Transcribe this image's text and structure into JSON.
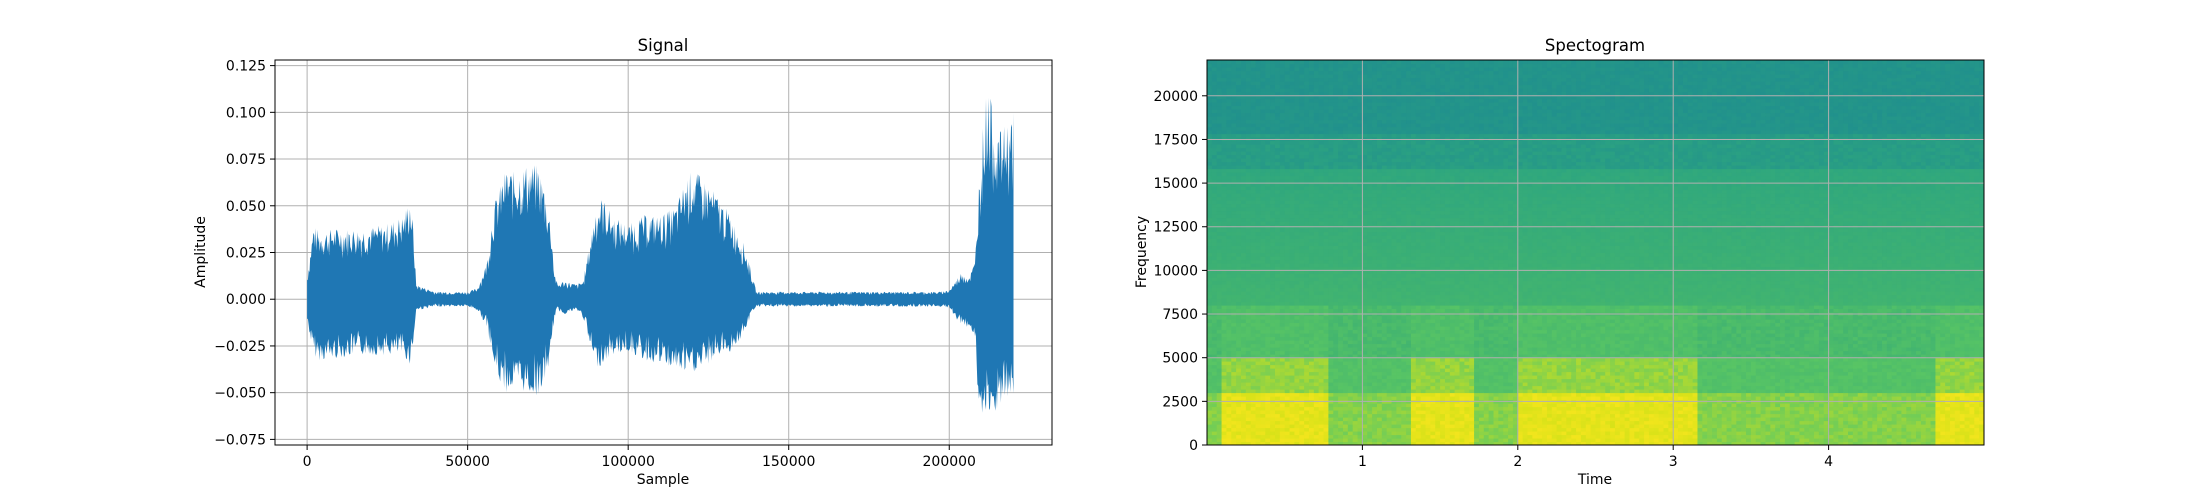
{
  "chart_data": [
    {
      "type": "line",
      "title": "Signal",
      "xlabel": "Sample",
      "ylabel": "Amplitude",
      "xlim": [
        -10000,
        232000
      ],
      "ylim": [
        -0.078,
        0.128
      ],
      "grid": true,
      "color": "#1f77b4",
      "xticks": [
        0,
        50000,
        100000,
        150000,
        200000
      ],
      "xtick_labels": [
        "0",
        "50000",
        "100000",
        "150000",
        "200000"
      ],
      "yticks": [
        -0.075,
        -0.05,
        -0.025,
        0.0,
        0.025,
        0.05,
        0.075,
        0.1,
        0.125
      ],
      "ytick_labels": [
        "−0.075",
        "−0.050",
        "−0.025",
        "0.000",
        "0.025",
        "0.050",
        "0.075",
        "0.100",
        "0.125"
      ],
      "envelope": {
        "x": [
          0,
          2000,
          4000,
          8000,
          16000,
          24000,
          30000,
          32000,
          33000,
          34000,
          40000,
          45000,
          50000,
          53000,
          56000,
          58000,
          60000,
          62000,
          65000,
          68000,
          72000,
          74000,
          76000,
          77000,
          78000,
          80000,
          84000,
          86000,
          88000,
          90000,
          92000,
          95000,
          100000,
          105000,
          110000,
          115000,
          118000,
          120000,
          125000,
          128000,
          132000,
          136000,
          138000,
          139000,
          140000,
          150000,
          160000,
          170000,
          180000,
          190000,
          197000,
          200000,
          202000,
          204000,
          206000,
          208000,
          209000,
          210000,
          212000,
          214000,
          216000,
          218000,
          220000
        ],
        "upper": [
          0.012,
          0.04,
          0.036,
          0.038,
          0.038,
          0.04,
          0.045,
          0.055,
          0.04,
          0.008,
          0.004,
          0.004,
          0.004,
          0.006,
          0.02,
          0.05,
          0.06,
          0.07,
          0.068,
          0.072,
          0.072,
          0.06,
          0.04,
          0.015,
          0.008,
          0.01,
          0.008,
          0.01,
          0.03,
          0.05,
          0.055,
          0.045,
          0.04,
          0.045,
          0.045,
          0.05,
          0.065,
          0.07,
          0.062,
          0.055,
          0.045,
          0.03,
          0.018,
          0.01,
          0.004,
          0.004,
          0.004,
          0.004,
          0.004,
          0.004,
          0.004,
          0.005,
          0.01,
          0.015,
          0.012,
          0.02,
          0.055,
          0.085,
          0.118,
          0.095,
          0.09,
          0.095,
          0.1
        ],
        "lower": [
          -0.012,
          -0.03,
          -0.033,
          -0.032,
          -0.03,
          -0.03,
          -0.03,
          -0.035,
          -0.025,
          -0.006,
          -0.004,
          -0.004,
          -0.004,
          -0.006,
          -0.015,
          -0.035,
          -0.045,
          -0.05,
          -0.048,
          -0.05,
          -0.052,
          -0.045,
          -0.03,
          -0.01,
          -0.006,
          -0.008,
          -0.006,
          -0.01,
          -0.025,
          -0.037,
          -0.035,
          -0.03,
          -0.028,
          -0.033,
          -0.035,
          -0.038,
          -0.04,
          -0.04,
          -0.035,
          -0.03,
          -0.028,
          -0.02,
          -0.01,
          -0.006,
          -0.004,
          -0.004,
          -0.004,
          -0.004,
          -0.004,
          -0.004,
          -0.004,
          -0.005,
          -0.01,
          -0.015,
          -0.015,
          -0.02,
          -0.055,
          -0.065,
          -0.067,
          -0.062,
          -0.058,
          -0.055,
          -0.055
        ]
      }
    },
    {
      "type": "heatmap",
      "title": "Spectogram",
      "xlabel": "Time",
      "ylabel": "Frequency",
      "xlim": [
        0,
        5.0
      ],
      "ylim": [
        0,
        22050
      ],
      "grid": true,
      "colormap": "viridis",
      "xticks": [
        1,
        2,
        3,
        4
      ],
      "xtick_labels": [
        "1",
        "2",
        "3",
        "4"
      ],
      "yticks": [
        0,
        2500,
        5000,
        7500,
        10000,
        12500,
        15000,
        17500,
        20000
      ],
      "ytick_labels": [
        "0",
        "2500",
        "5000",
        "7500",
        "10000",
        "12500",
        "15000",
        "17500",
        "20000"
      ],
      "active_segments": [
        [
          0.08,
          0.78
        ],
        [
          1.3,
          1.72
        ],
        [
          2.0,
          3.15
        ],
        [
          4.7,
          5.0
        ]
      ],
      "colors": {
        "top_band": "#21918c",
        "upper_mid": "#2ea67f",
        "mid": "#43b56f",
        "low_quiet": "#5ec962",
        "low_active": "#d8e219",
        "low_peak": "#f2e51d"
      }
    }
  ]
}
